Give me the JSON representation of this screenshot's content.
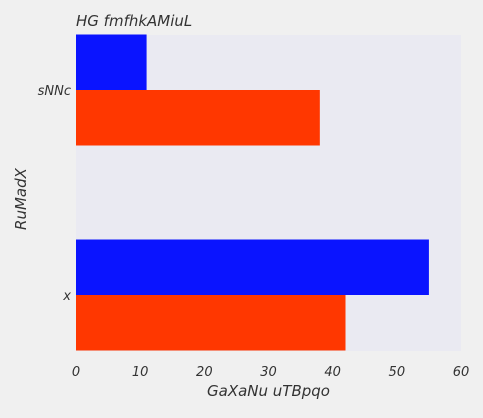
{
  "chart_data": {
    "type": "bar",
    "orientation": "horizontal",
    "title": "HG fmfhkAMiuL",
    "xlabel": "GaXaNu uTBpqo",
    "ylabel": "RuMadX",
    "categories": [
      "x",
      "sNNc"
    ],
    "series": [
      {
        "color": "#ff3700",
        "values": [
          42,
          38
        ]
      },
      {
        "color": "#0a14ff",
        "values": [
          55,
          11
        ]
      }
    ],
    "xlim": [
      0,
      60
    ],
    "xticks": [
      "0",
      "10",
      "20",
      "30",
      "40",
      "50",
      "60"
    ],
    "grid": false,
    "plot_background": "#eaeaf2",
    "page_background": "#f0f0f0"
  }
}
